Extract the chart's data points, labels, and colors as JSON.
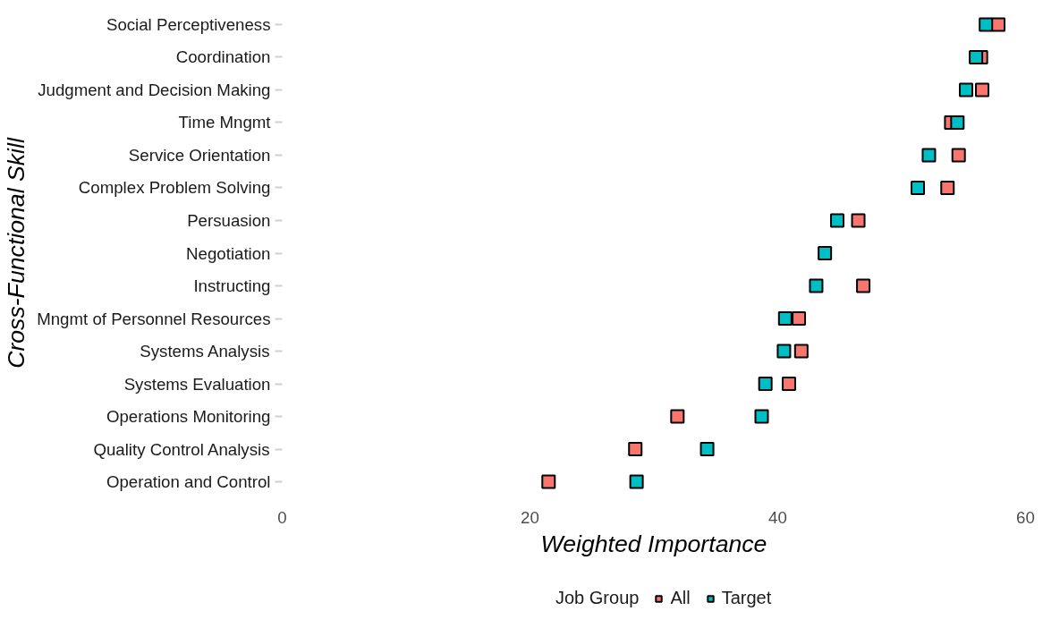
{
  "chart_data": {
    "type": "scatter",
    "orientation": "horizontal",
    "xlabel": "Weighted Importance",
    "ylabel": "Cross-Functional Skill",
    "legend_title": "Job Group",
    "legend": "bottom",
    "grid": false,
    "marker": "square",
    "categories": [
      "Social Perceptiveness",
      "Coordination",
      "Judgment and Decision Making",
      "Time Mngmt",
      "Service Orientation",
      "Complex Problem Solving",
      "Persuasion",
      "Negotiation",
      "Instructing",
      "Mngmt of Personnel Resources",
      "Systems Analysis",
      "Systems Evaluation",
      "Operations Monitoring",
      "Quality Control Analysis",
      "Operation and Control"
    ],
    "xlim": [
      0,
      60
    ],
    "xticks": [
      0,
      20,
      40,
      60
    ],
    "series": [
      {
        "name": "All",
        "color": "#f8766d",
        "values": [
          57.8,
          56.4,
          56.5,
          54.0,
          54.6,
          53.7,
          46.5,
          null,
          46.9,
          41.7,
          41.9,
          40.9,
          31.9,
          28.5,
          21.5
        ]
      },
      {
        "name": "Target",
        "color": "#00bfc4",
        "values": [
          56.8,
          56.0,
          55.2,
          54.5,
          52.2,
          51.3,
          44.8,
          43.8,
          43.1,
          40.6,
          40.5,
          39.0,
          38.7,
          34.3,
          28.6
        ]
      }
    ]
  }
}
